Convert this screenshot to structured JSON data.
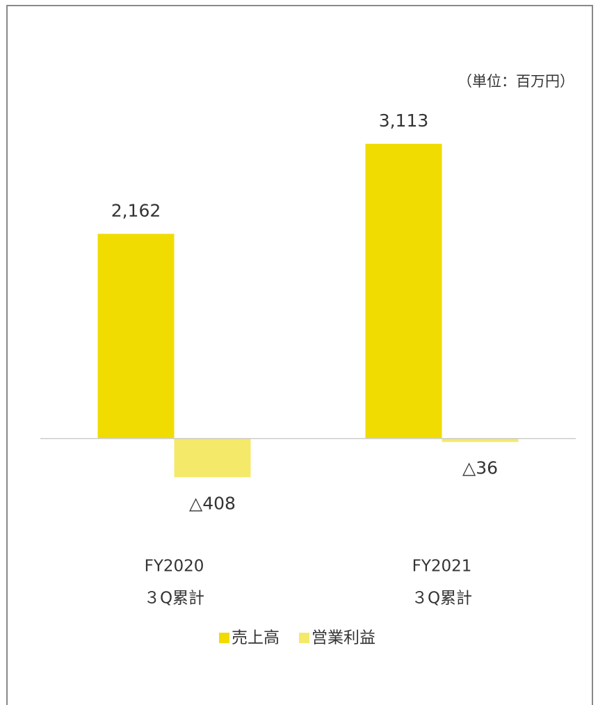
{
  "chart_data": {
    "type": "bar",
    "subtitle": "（単位：百万円）",
    "categories": [
      [
        "FY2020",
        "３Q累計"
      ],
      [
        "FY2021",
        "３Q累計"
      ]
    ],
    "series": [
      {
        "name": "売上高",
        "color": "#f0dc00",
        "values": [
          2162,
          3113
        ],
        "value_labels": [
          "2,162",
          "3,113"
        ]
      },
      {
        "name": "営業利益",
        "color": "#f5e96a",
        "values": [
          -408,
          -36
        ],
        "value_labels": [
          "△408",
          "△36"
        ]
      }
    ],
    "ylim": [
      -1000,
      4000
    ],
    "legend": "bottom"
  }
}
